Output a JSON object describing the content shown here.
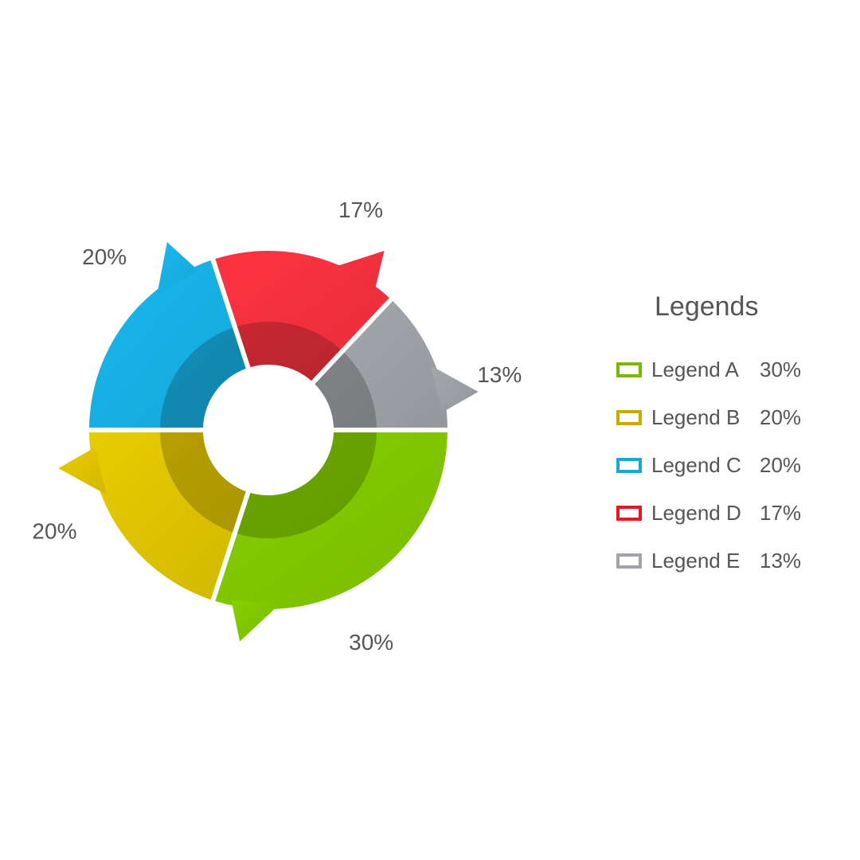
{
  "chart_data": {
    "type": "pie",
    "title": "",
    "legend_title": "Legends",
    "legend_position": "right",
    "slices": [
      {
        "label": "Legend A",
        "value": 30,
        "value_label": "30%",
        "color": "#86d000",
        "swatch": "#7ab800"
      },
      {
        "label": "Legend B",
        "value": 20,
        "value_label": "20%",
        "color": "#e8cc00",
        "swatch": "#c9a800"
      },
      {
        "label": "Legend C",
        "value": 20,
        "value_label": "20%",
        "color": "#18b8ef",
        "swatch": "#1aa6d8"
      },
      {
        "label": "Legend D",
        "value": 17,
        "value_label": "17%",
        "color": "#ff3340",
        "swatch": "#e81820"
      },
      {
        "label": "Legend E",
        "value": 13,
        "value_label": "13%",
        "color": "#a4a8ac",
        "swatch": "#a0a4a8"
      }
    ]
  }
}
